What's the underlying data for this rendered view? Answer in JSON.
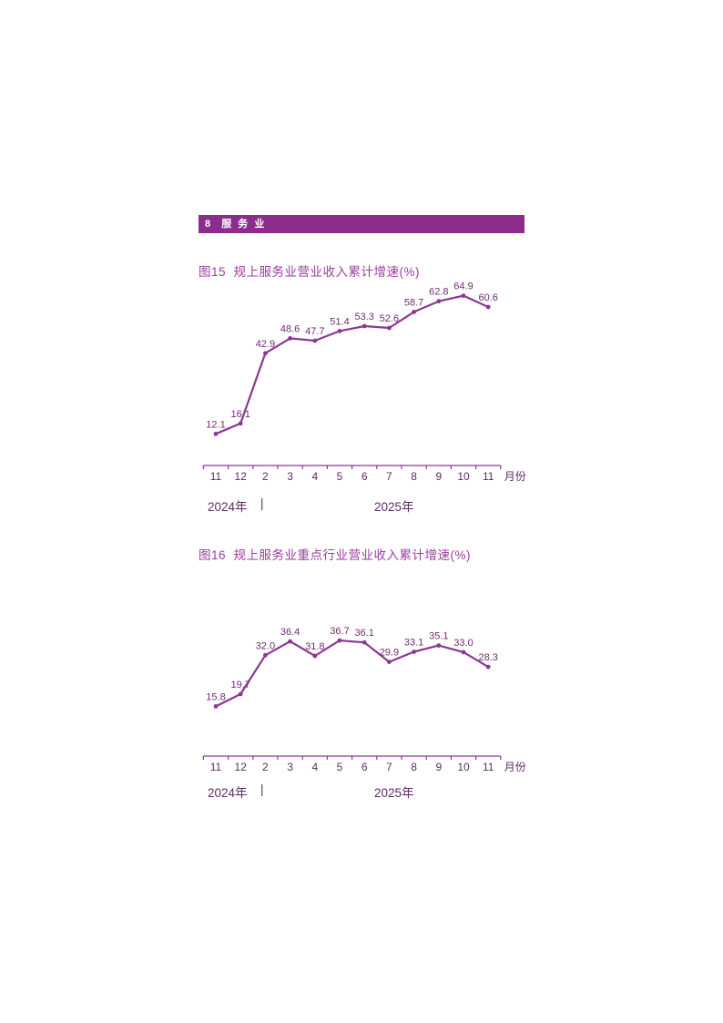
{
  "header": {
    "label": "8  服 务 业"
  },
  "colors": {
    "section_bar_bg": "#8C2D8E",
    "section_bar_text": "#FFFFFF",
    "title_text": "#9D3C9F",
    "line": "#8D3794",
    "marker": "#8D3794",
    "data_label_text": "#702D6E",
    "axis": "#8D3794",
    "tick_label_text": "#5E2A64",
    "year_text": "#5E2A64"
  },
  "chart_data": [
    {
      "type": "line",
      "figure_label": "图15",
      "title": "图15  规上服务业营业收入累计增速(%)",
      "categories": [
        "11",
        "12",
        "2",
        "3",
        "4",
        "5",
        "6",
        "7",
        "8",
        "9",
        "10",
        "11"
      ],
      "x_axis_suffix": "月份",
      "values": [
        12.1,
        16.1,
        42.9,
        48.6,
        47.7,
        51.4,
        53.3,
        52.6,
        58.7,
        62.8,
        64.9,
        60.6
      ],
      "data_labels": [
        "12.1",
        "16.1",
        "42.9",
        "48.6",
        "47.7",
        "51.4",
        "53.3",
        "52.6",
        "58.7",
        "62.8",
        "64.9",
        "60.6"
      ],
      "year_left": "2024年",
      "year_separator": "|",
      "year_right": "2025年",
      "xlabel": "月份",
      "ylabel": "",
      "ylim": [
        0,
        70
      ],
      "grid": false,
      "legend": "none"
    },
    {
      "type": "line",
      "figure_label": "图16",
      "title": "图16  规上服务业重点行业营业收入累计增速(%)",
      "categories": [
        "11",
        "12",
        "2",
        "3",
        "4",
        "5",
        "6",
        "7",
        "8",
        "9",
        "10",
        "11"
      ],
      "x_axis_suffix": "月份",
      "values": [
        15.8,
        19.7,
        32.0,
        36.4,
        31.8,
        36.7,
        36.1,
        29.9,
        33.1,
        35.1,
        33.0,
        28.3
      ],
      "data_labels": [
        "15.8",
        "19.7",
        "32.0",
        "36.4",
        "31.8",
        "36.7",
        "36.1",
        "29.9",
        "33.1",
        "35.1",
        "33.0",
        "28.3"
      ],
      "year_left": "2024年",
      "year_separator": "|",
      "year_right": "2025年",
      "xlabel": "月份",
      "ylabel": "",
      "ylim": [
        0,
        48
      ],
      "grid": false,
      "legend": "none"
    }
  ]
}
